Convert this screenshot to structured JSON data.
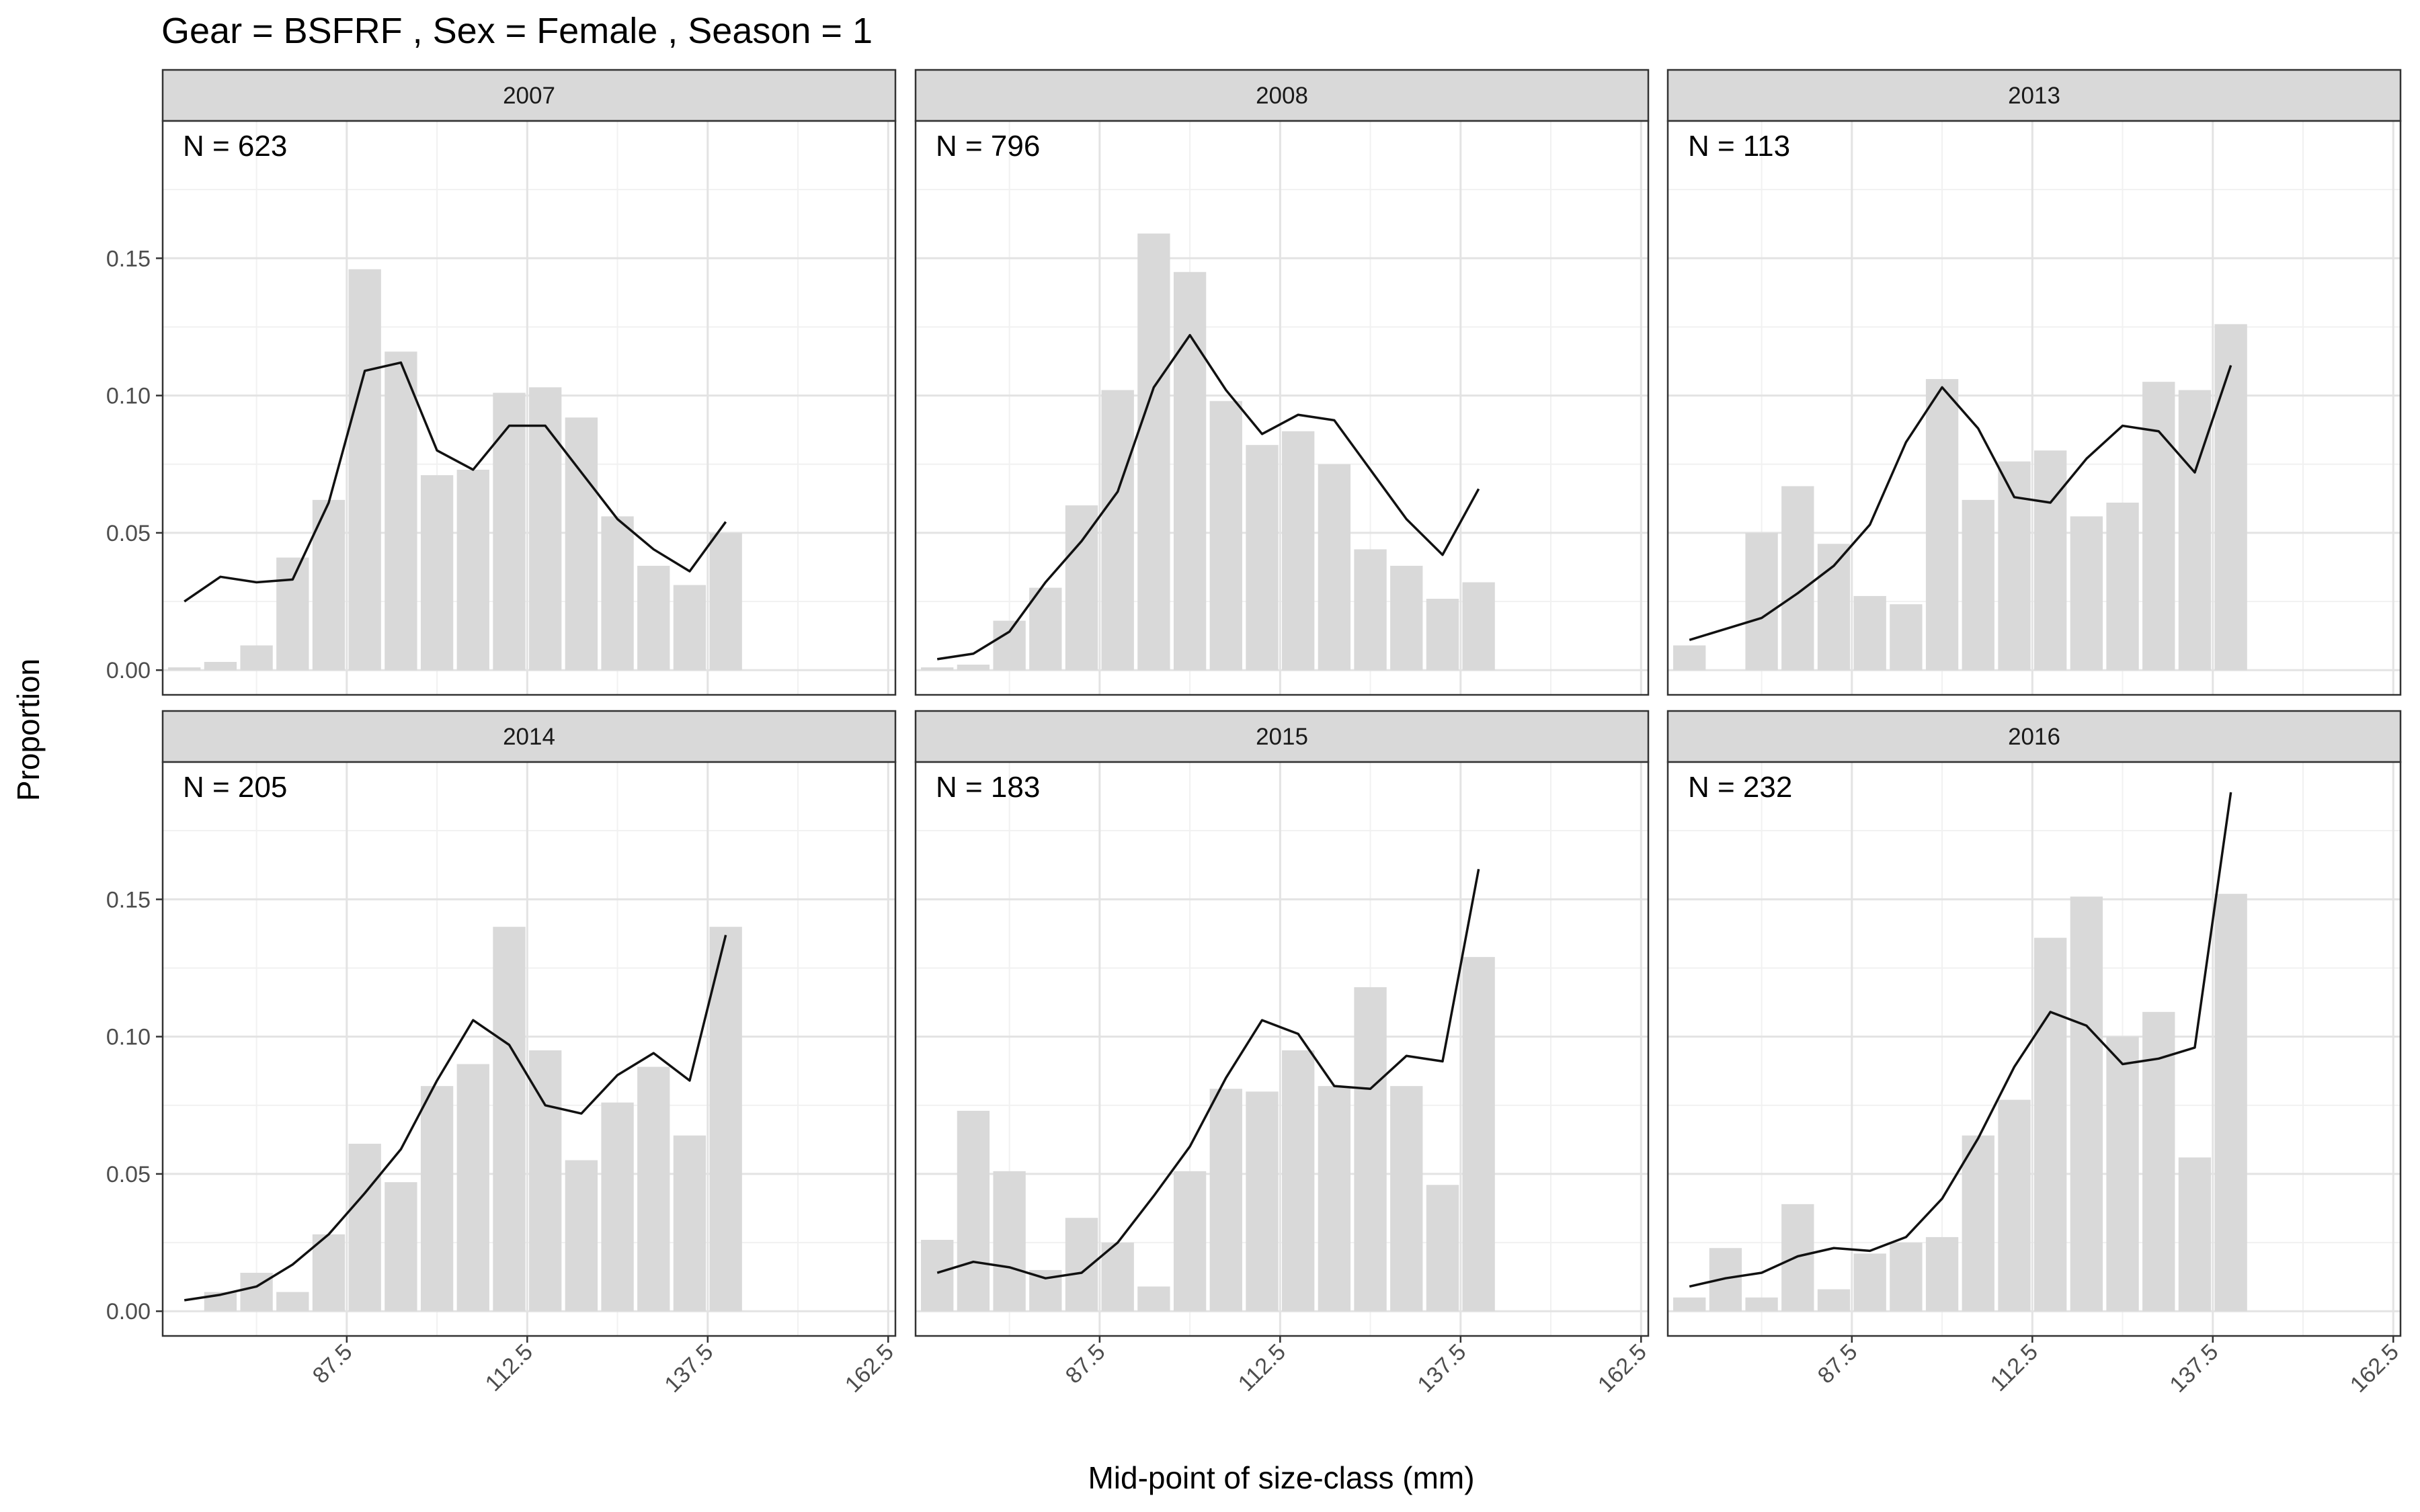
{
  "title": "Gear = BSFRF , Sex = Female , Season = 1",
  "chart_data": {
    "type": "bar",
    "xlabel": "Mid-point of size-class (mm)",
    "ylabel": "Proportion",
    "xlim": [
      62,
      163.5
    ],
    "ylim": [
      -0.009,
      0.2
    ],
    "x_ticks": [
      87.5,
      112.5,
      137.5,
      162.5
    ],
    "x_tick_labels": [
      "87.5",
      "112.5",
      "137.5",
      "162.5"
    ],
    "y_ticks": [
      0.0,
      0.05,
      0.1,
      0.15
    ],
    "y_tick_labels": [
      "0.00",
      "0.05",
      "0.10",
      "0.15"
    ],
    "grid": true,
    "categories": [
      65,
      70,
      75,
      80,
      85,
      90,
      95,
      100,
      105,
      110,
      115,
      120,
      125,
      130,
      135,
      140
    ],
    "series_types": {
      "observed": "bar",
      "predicted": "line"
    },
    "panels": [
      {
        "year": "2007",
        "n_label": "N = 623",
        "observed": [
          0.001,
          0.003,
          0.009,
          0.041,
          0.062,
          0.146,
          0.116,
          0.071,
          0.073,
          0.101,
          0.103,
          0.092,
          0.056,
          0.038,
          0.031,
          0.05
        ],
        "predicted": [
          0.025,
          0.034,
          0.032,
          0.033,
          0.061,
          0.109,
          0.112,
          0.08,
          0.073,
          0.089,
          0.089,
          0.072,
          0.055,
          0.044,
          0.036,
          0.054
        ]
      },
      {
        "year": "2008",
        "n_label": "N = 796",
        "observed": [
          0.001,
          0.002,
          0.018,
          0.03,
          0.06,
          0.102,
          0.159,
          0.145,
          0.098,
          0.082,
          0.087,
          0.075,
          0.044,
          0.038,
          0.026,
          0.032
        ],
        "predicted": [
          0.004,
          0.006,
          0.014,
          0.032,
          0.047,
          0.065,
          0.103,
          0.122,
          0.102,
          0.086,
          0.093,
          0.091,
          0.073,
          0.055,
          0.042,
          0.066
        ]
      },
      {
        "year": "2013",
        "n_label": "N = 113",
        "observed": [
          0.009,
          0.0,
          0.05,
          0.067,
          0.046,
          0.027,
          0.024,
          0.106,
          0.062,
          0.076,
          0.08,
          0.056,
          0.061,
          0.105,
          0.102,
          0.126
        ],
        "predicted": [
          0.011,
          0.015,
          0.019,
          0.028,
          0.038,
          0.053,
          0.083,
          0.103,
          0.088,
          0.063,
          0.061,
          0.077,
          0.089,
          0.087,
          0.072,
          0.111
        ]
      },
      {
        "year": "2014",
        "n_label": "N = 205",
        "observed": [
          0.0,
          0.007,
          0.014,
          0.007,
          0.028,
          0.061,
          0.047,
          0.082,
          0.09,
          0.14,
          0.095,
          0.055,
          0.076,
          0.089,
          0.064,
          0.14
        ],
        "predicted": [
          0.004,
          0.006,
          0.009,
          0.017,
          0.028,
          0.043,
          0.059,
          0.084,
          0.106,
          0.097,
          0.075,
          0.072,
          0.086,
          0.094,
          0.084,
          0.137
        ]
      },
      {
        "year": "2015",
        "n_label": "N = 183",
        "observed": [
          0.026,
          0.073,
          0.051,
          0.015,
          0.034,
          0.025,
          0.009,
          0.051,
          0.081,
          0.08,
          0.095,
          0.082,
          0.118,
          0.082,
          0.046,
          0.129
        ],
        "predicted": [
          0.014,
          0.018,
          0.016,
          0.012,
          0.014,
          0.025,
          0.042,
          0.06,
          0.085,
          0.106,
          0.101,
          0.082,
          0.081,
          0.093,
          0.091,
          0.161
        ]
      },
      {
        "year": "2016",
        "n_label": "N = 232",
        "observed": [
          0.005,
          0.023,
          0.005,
          0.039,
          0.008,
          0.021,
          0.025,
          0.027,
          0.064,
          0.077,
          0.136,
          0.151,
          0.1,
          0.109,
          0.056,
          0.152
        ],
        "predicted": [
          0.009,
          0.012,
          0.014,
          0.02,
          0.023,
          0.022,
          0.027,
          0.041,
          0.063,
          0.089,
          0.109,
          0.104,
          0.09,
          0.092,
          0.096,
          0.189
        ]
      }
    ]
  }
}
